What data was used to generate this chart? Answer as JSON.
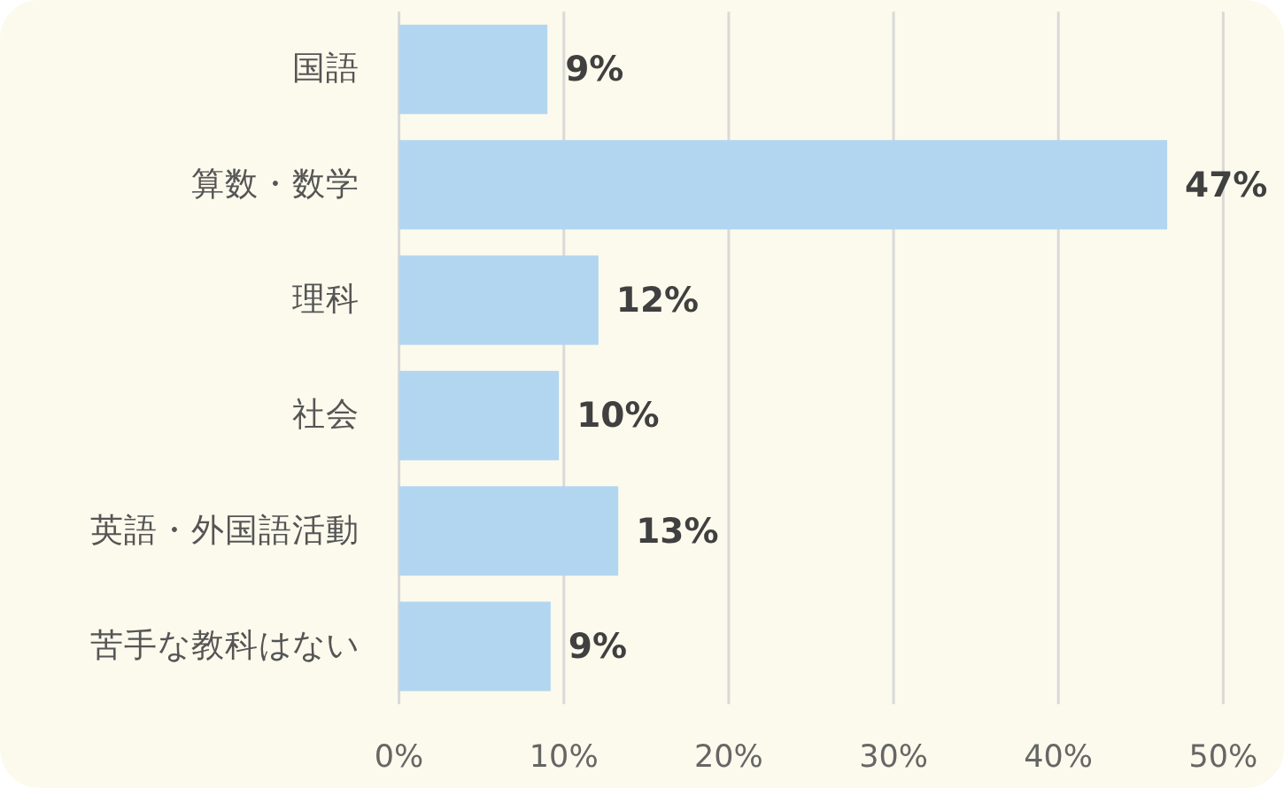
{
  "chart_data": {
    "type": "bar",
    "orientation": "horizontal",
    "categories": [
      "国語",
      "算数・数学",
      "理科",
      "社会",
      "英語・外国語活動",
      "苦手な教科はない"
    ],
    "values": [
      9.0,
      46.6,
      12.1,
      9.7,
      13.3,
      9.2
    ],
    "value_labels": [
      "9%",
      "47%",
      "12%",
      "10%",
      "13%",
      "9%"
    ],
    "color": "#b3d6f0",
    "xlim": [
      0,
      50
    ],
    "xticks": [
      {
        "value": 0,
        "label": "0%"
      },
      {
        "value": 10,
        "label": "10%"
      },
      {
        "value": 20,
        "label": "20%"
      },
      {
        "value": 30,
        "label": "30%"
      },
      {
        "value": 40,
        "label": "40%"
      },
      {
        "value": 50,
        "label": "50%"
      }
    ],
    "grid": "x"
  }
}
